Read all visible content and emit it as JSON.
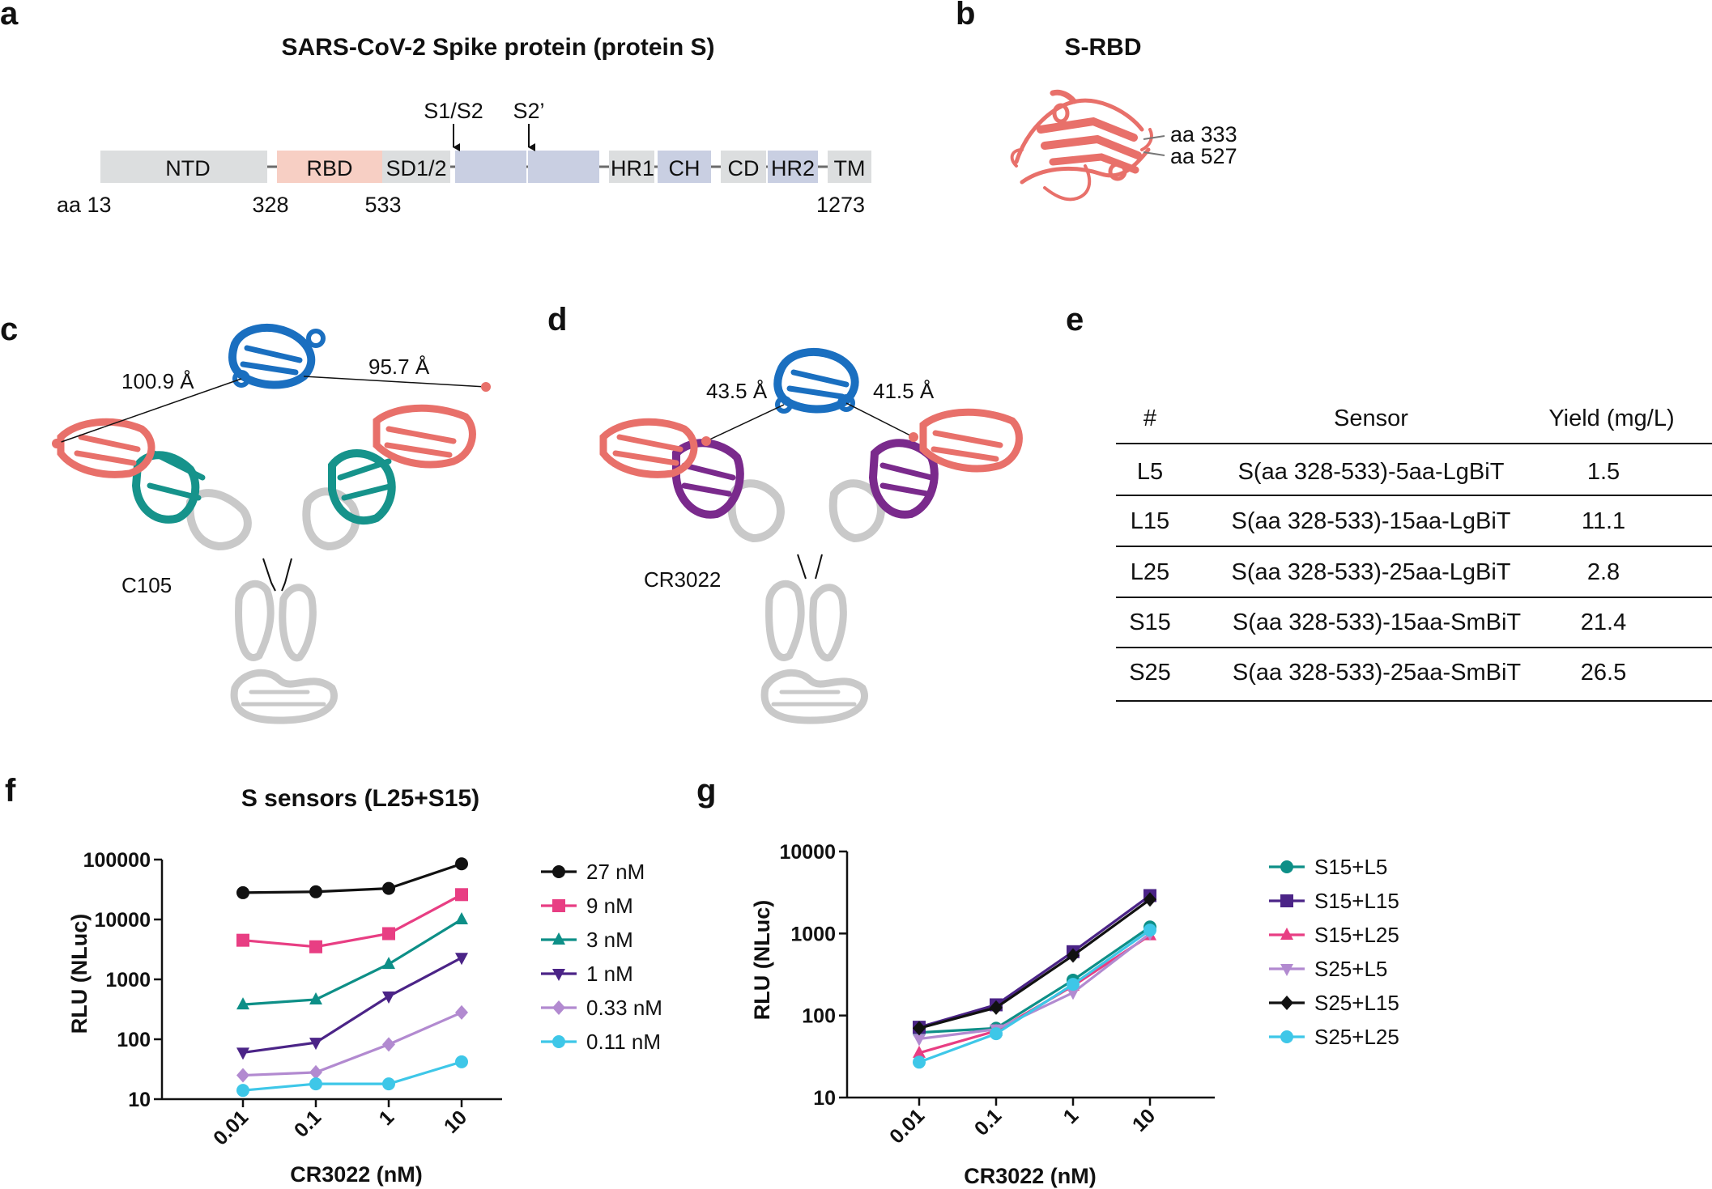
{
  "figure": {
    "panel_labels": [
      "a",
      "b",
      "c",
      "d",
      "e",
      "f",
      "g"
    ],
    "colors": {
      "ntd": "#dcdedf",
      "rbd": "#f7cfc4",
      "s2": "#c9cfe2",
      "rbd_structure": "#e8706a",
      "c105": "#16938b",
      "cr3022": "#7a2a8c",
      "antigen": "#1a6fc0",
      "ab_constant": "#c9c9c9"
    }
  },
  "panel_a": {
    "title": "SARS-CoV-2 Spike protein (protein S)",
    "domains": [
      {
        "label": "NTD",
        "color": "#dcdedf"
      },
      {
        "label": "RBD",
        "color": "#f7cfc4"
      },
      {
        "label": "SD1/2",
        "color": "#dcdedf"
      },
      {
        "label": "",
        "color": "#c9cfe2"
      },
      {
        "label": "",
        "color": "#c9cfe2"
      },
      {
        "label": "HR1",
        "color": "#dcdedf"
      },
      {
        "label": "CH",
        "color": "#c9cfe2"
      },
      {
        "label": "CD",
        "color": "#dcdedf"
      },
      {
        "label": "HR2",
        "color": "#c9cfe2"
      },
      {
        "label": "TM",
        "color": "#dcdedf"
      }
    ],
    "cleavage_sites": [
      "S1/S2",
      "S2’"
    ],
    "positions": [
      "aa 13",
      "328",
      "533",
      "1273"
    ]
  },
  "panel_b": {
    "title": "S-RBD",
    "labels": [
      "aa 333",
      "aa 527"
    ]
  },
  "panel_c": {
    "distances": [
      "100.9 Å",
      "95.7 Å"
    ],
    "antibody": "C105"
  },
  "panel_d": {
    "distances": [
      "43.5 Å",
      "41.5 Å"
    ],
    "antibody": "CR3022"
  },
  "panel_e": {
    "headers": [
      "#",
      "Sensor",
      "Yield (mg/L)"
    ],
    "rows": [
      {
        "id": "L5",
        "sensor": "S(aa 328-533)-5aa-LgBiT",
        "yield": "1.5"
      },
      {
        "id": "L15",
        "sensor": "S(aa 328-533)-15aa-LgBiT",
        "yield": "11.1"
      },
      {
        "id": "L25",
        "sensor": "S(aa 328-533)-25aa-LgBiT",
        "yield": "2.8"
      },
      {
        "id": "S15",
        "sensor": "S(aa 328-533)-15aa-SmBiT",
        "yield": "21.4"
      },
      {
        "id": "S25",
        "sensor": "S(aa 328-533)-25aa-SmBiT",
        "yield": "26.5"
      }
    ]
  },
  "chart_data": [
    {
      "type": "line",
      "title": "S sensors (L25+S15)",
      "xlabel": "CR3022 (nM)",
      "ylabel": "RLU (NLuc)",
      "x": [
        "0.01",
        "0.1",
        "1",
        "10"
      ],
      "y_scale": "log10",
      "ylim": [
        10,
        100000
      ],
      "yticks": [
        "10",
        "100",
        "1000",
        "10000",
        "100000"
      ],
      "legend_position": "right",
      "series": [
        {
          "name": "27 nM",
          "color": "#111111",
          "marker": "circle",
          "values": [
            28000,
            29000,
            33000,
            85000
          ]
        },
        {
          "name": "9 nM",
          "color": "#e83e83",
          "marker": "square",
          "values": [
            4500,
            3500,
            5800,
            26000
          ]
        },
        {
          "name": "3 nM",
          "color": "#0d8f87",
          "marker": "triangle",
          "values": [
            380,
            460,
            1800,
            10000
          ]
        },
        {
          "name": "1 nM",
          "color": "#4b2487",
          "marker": "triangle-down",
          "values": [
            60,
            88,
            520,
            2300
          ]
        },
        {
          "name": "0.33 nM",
          "color": "#b28ad0",
          "marker": "diamond",
          "values": [
            25,
            28,
            82,
            280
          ]
        },
        {
          "name": "0.11 nM",
          "color": "#3ec7e8",
          "marker": "circle",
          "values": [
            14,
            18,
            18,
            42
          ]
        }
      ]
    },
    {
      "type": "line",
      "title": "",
      "xlabel": "CR3022 (nM)",
      "ylabel": "RLU (NLuc)",
      "x": [
        "0.01",
        "0.1",
        "1",
        "10"
      ],
      "y_scale": "log10",
      "ylim": [
        10,
        10000
      ],
      "yticks": [
        "10",
        "100",
        "1000",
        "10000"
      ],
      "legend_position": "right",
      "series": [
        {
          "name": "S15+L5",
          "color": "#0d8f87",
          "marker": "circle",
          "values": [
            62,
            70,
            270,
            1200
          ]
        },
        {
          "name": "S15+L15",
          "color": "#4b2487",
          "marker": "square",
          "values": [
            72,
            135,
            600,
            2900
          ]
        },
        {
          "name": "S15+L25",
          "color": "#e83e83",
          "marker": "triangle",
          "values": [
            35,
            65,
            230,
            950
          ]
        },
        {
          "name": "S25+L5",
          "color": "#b28ad0",
          "marker": "triangle-down",
          "values": [
            52,
            68,
            190,
            1000
          ]
        },
        {
          "name": "S25+L15",
          "color": "#111111",
          "marker": "diamond",
          "values": [
            70,
            125,
            540,
            2600
          ]
        },
        {
          "name": "S25+L25",
          "color": "#3ec7e8",
          "marker": "circle",
          "values": [
            27,
            60,
            240,
            1100
          ]
        }
      ]
    }
  ]
}
